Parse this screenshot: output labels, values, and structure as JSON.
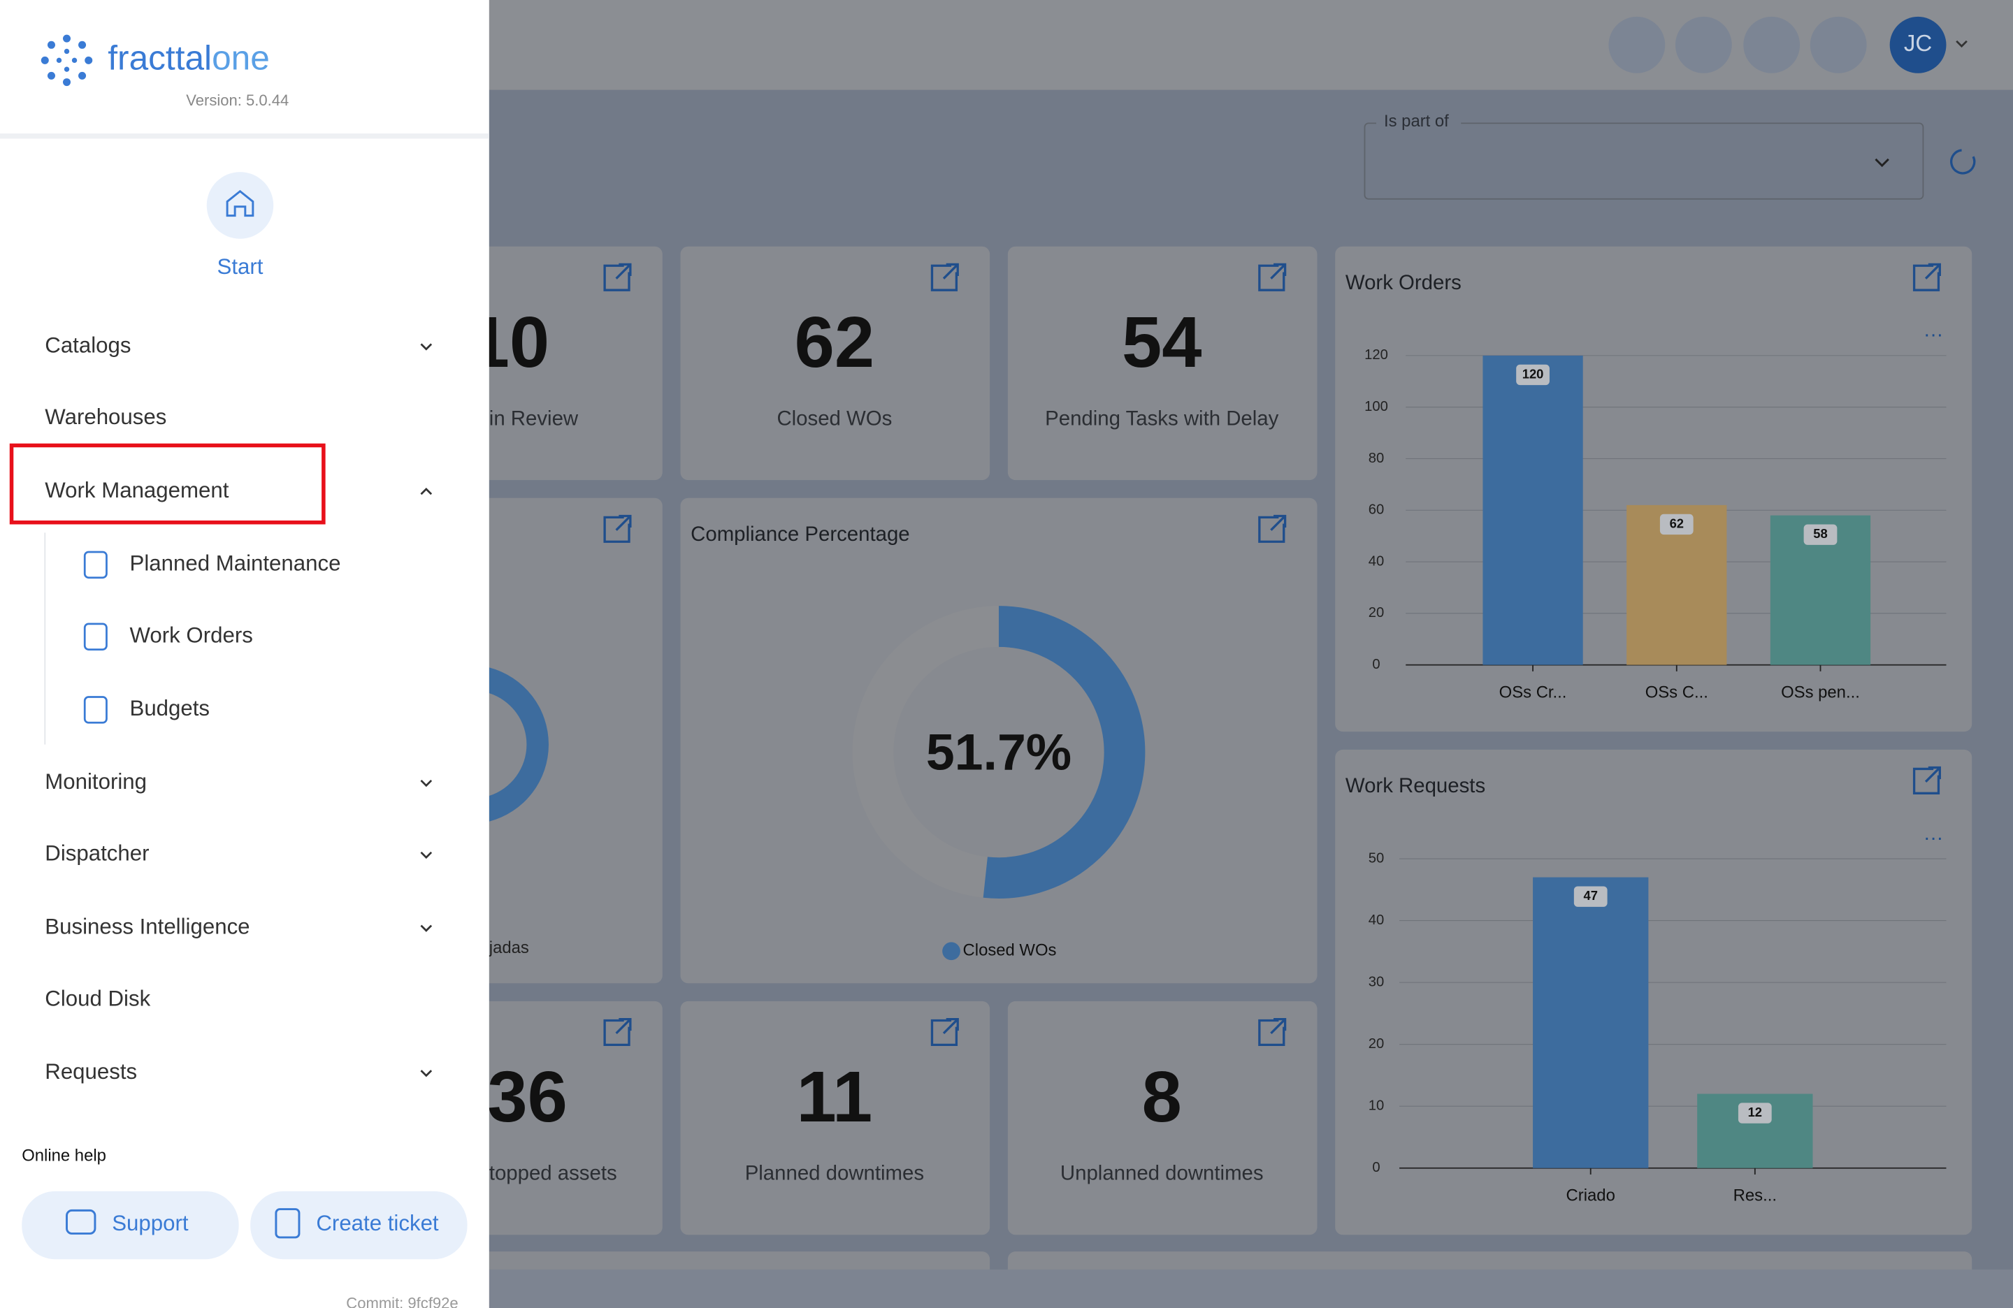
{
  "sidebar": {
    "brand": "fracttal",
    "brand_suffix": "one",
    "version": "Version: 5.0.44",
    "start": "Start",
    "menu": [
      "Catalogs",
      "Warehouses",
      "Work Management"
    ],
    "submenu": [
      "Planned Maintenance",
      "Work Orders",
      "Budgets"
    ],
    "menu_after": [
      "Monitoring",
      "Dispatcher",
      "Business Intelligence",
      "Cloud Disk",
      "Requests"
    ],
    "online_help": "Online help",
    "buttons": [
      "Support",
      "Create ticket"
    ],
    "commit": "Commit: 9fcf92e"
  },
  "header": {
    "avatar": "JC"
  },
  "filter": {
    "label": "Is part of"
  },
  "cards": [
    {
      "value": 10,
      "label": "in Review"
    },
    {
      "value": 62,
      "label": "Closed WOs"
    },
    {
      "value": 54,
      "label": "Pending Tasks with Delay"
    },
    {
      "value": 36,
      "label": "topped assets"
    },
    {
      "value": 11,
      "label": "Planned downtimes"
    },
    {
      "value": 8,
      "label": "Unplanned downtimes"
    }
  ],
  "partial_label": "jadas",
  "chart_data": [
    {
      "type": "donut",
      "title": "Compliance Percentage",
      "categories": [
        "Closed WOs"
      ],
      "values": [
        51.7
      ],
      "value_labels": [
        "51.7%"
      ],
      "color": "#3d6c9e",
      "track_color": "#8b8d91"
    },
    {
      "type": "bar",
      "title": "Work Orders",
      "categories": [
        "OSs Cr...",
        "OSs C...",
        "OSs pen..."
      ],
      "values": [
        120,
        62,
        58
      ],
      "colors": [
        "#3d6c9e",
        "#a88b5a",
        "#4f8783"
      ],
      "ylim": [
        0,
        120
      ],
      "yticks": [
        0,
        20,
        40,
        60,
        80,
        100,
        120
      ],
      "grid": true
    },
    {
      "type": "bar",
      "title": "Work Requests",
      "categories": [
        "Criado",
        "Res..."
      ],
      "values": [
        47,
        12
      ],
      "colors": [
        "#3d6c9e",
        "#4f8783"
      ],
      "ylim": [
        0,
        50
      ],
      "yticks": [
        0,
        10,
        20,
        30,
        40,
        50
      ],
      "grid": true
    }
  ]
}
